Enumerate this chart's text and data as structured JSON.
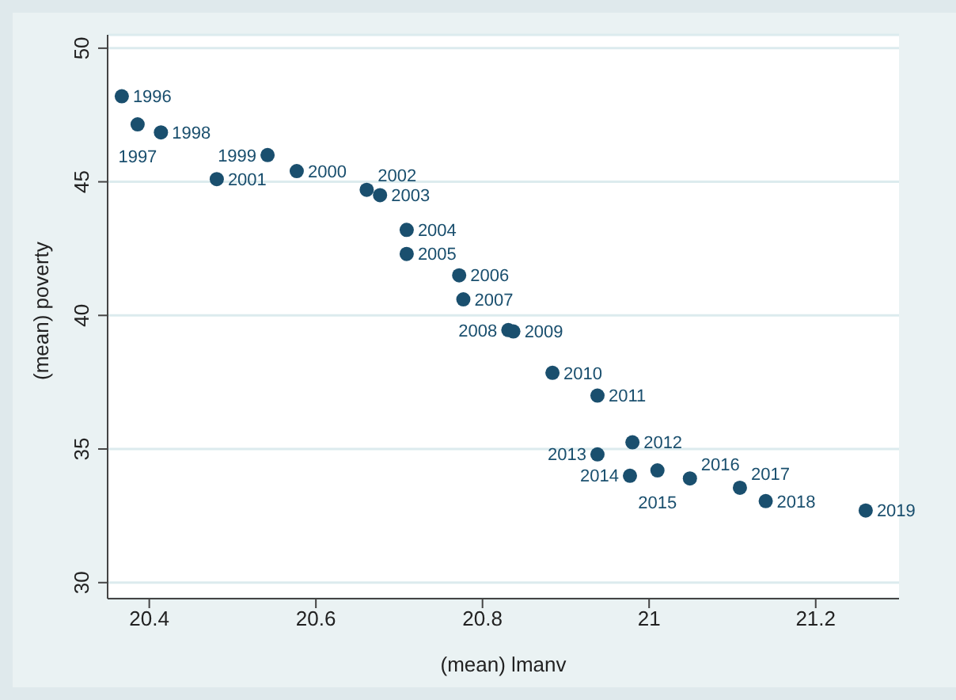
{
  "chart_data": {
    "type": "scatter",
    "xlabel": "(mean) lmanv",
    "ylabel": "(mean) poverty",
    "x": [
      20.367,
      20.386,
      20.414,
      20.542,
      20.577,
      20.481,
      20.661,
      20.677,
      20.709,
      20.709,
      20.772,
      20.777,
      20.831,
      20.837,
      20.884,
      20.938,
      20.98,
      20.938,
      20.977,
      21.01,
      21.049,
      21.109,
      21.14,
      21.26
    ],
    "values": [
      48.2,
      47.15,
      46.85,
      46.0,
      45.4,
      45.1,
      44.7,
      44.5,
      43.2,
      42.3,
      41.5,
      40.6,
      39.45,
      39.4,
      37.85,
      37.0,
      35.25,
      34.8,
      34.0,
      34.2,
      33.9,
      33.55,
      33.05,
      32.7
    ],
    "annotations": [
      {
        "text": "1996",
        "x": 20.367,
        "y": 48.2
      },
      {
        "text": "1997",
        "x": 20.386,
        "y": 47.15
      },
      {
        "text": "1998",
        "x": 20.414,
        "y": 46.85
      },
      {
        "text": "1999",
        "x": 20.542,
        "y": 46.0
      },
      {
        "text": "2000",
        "x": 20.577,
        "y": 45.4
      },
      {
        "text": "2001",
        "x": 20.481,
        "y": 45.1
      },
      {
        "text": "2002",
        "x": 20.661,
        "y": 44.7
      },
      {
        "text": "2003",
        "x": 20.677,
        "y": 44.5
      },
      {
        "text": "2004",
        "x": 20.709,
        "y": 43.2
      },
      {
        "text": "2005",
        "x": 20.709,
        "y": 42.3
      },
      {
        "text": "2006",
        "x": 20.772,
        "y": 41.5
      },
      {
        "text": "2007",
        "x": 20.777,
        "y": 40.6
      },
      {
        "text": "2008",
        "x": 20.831,
        "y": 39.45
      },
      {
        "text": "2009",
        "x": 20.837,
        "y": 39.4
      },
      {
        "text": "2010",
        "x": 20.884,
        "y": 37.85
      },
      {
        "text": "2011",
        "x": 20.938,
        "y": 37.0
      },
      {
        "text": "2012",
        "x": 20.98,
        "y": 35.25
      },
      {
        "text": "2013",
        "x": 20.938,
        "y": 34.8
      },
      {
        "text": "2014",
        "x": 20.977,
        "y": 34.0
      },
      {
        "text": "2015",
        "x": 21.01,
        "y": 34.2
      },
      {
        "text": "2016",
        "x": 21.049,
        "y": 33.9
      },
      {
        "text": "2017",
        "x": 21.109,
        "y": 33.55
      },
      {
        "text": "2018",
        "x": 21.14,
        "y": 33.05
      },
      {
        "text": "2019",
        "x": 21.26,
        "y": 32.7
      }
    ],
    "color": "#1a4f6e",
    "marker": "circle",
    "grid": "y",
    "legend": false,
    "xlim": [
      20.35,
      21.3
    ],
    "xticks": [
      20.4,
      20.6,
      20.8,
      21,
      21.2
    ],
    "ylim": [
      29.4,
      50.5
    ],
    "yticks": [
      30,
      35,
      40,
      45,
      50
    ]
  }
}
